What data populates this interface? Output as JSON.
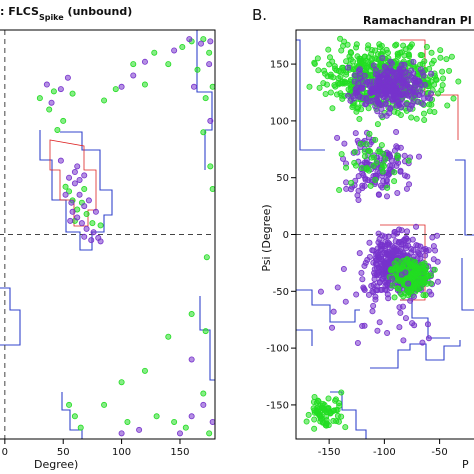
{
  "figure": {
    "panel_a": {
      "title_prefix": ": FLCS",
      "title_sub": "Spike",
      "title_suffix": " (unbound)"
    },
    "panel_b": {
      "letter": "B.",
      "title": "Ramachandran Pl"
    }
  },
  "chart_data": [
    {
      "type": "scatter",
      "panel": "A",
      "title": ": FLCS Spike (unbound)",
      "xlabel": "Degree)",
      "ylabel": "",
      "xlim": [
        -5,
        180
      ],
      "ylim": [
        -180,
        180
      ],
      "x_ticks": [
        "0",
        "50",
        "100",
        "150"
      ],
      "x_tick_values": [
        0,
        50,
        100,
        150
      ],
      "reference_lines": {
        "vertical_x": 0,
        "horizontal_y": 0,
        "style": "dashed"
      },
      "colors": {
        "favored_contour": "#3344cc",
        "allowed_contour": "#dd2222",
        "point_green": "#22dd22",
        "point_purple": "#7733cc"
      },
      "series": [
        {
          "name": "green",
          "points": [
            [
              62,
              22
            ],
            [
              58,
              30
            ],
            [
              66,
              28
            ],
            [
              70,
              18
            ],
            [
              55,
              38
            ],
            [
              60,
              12
            ],
            [
              75,
              10
            ],
            [
              52,
              42
            ],
            [
              82,
              8
            ],
            [
              68,
              40
            ],
            [
              45,
              92
            ],
            [
              38,
              110
            ],
            [
              50,
              100
            ],
            [
              58,
              124
            ],
            [
              42,
              126
            ],
            [
              30,
              120
            ],
            [
              85,
              118
            ],
            [
              95,
              128
            ],
            [
              120,
              132
            ],
            [
              140,
              150
            ],
            [
              152,
              165
            ],
            [
              160,
              170
            ],
            [
              170,
              172
            ],
            [
              175,
              160
            ],
            [
              165,
              145
            ],
            [
              178,
              130
            ],
            [
              172,
              120
            ],
            [
              110,
              150
            ],
            [
              128,
              160
            ],
            [
              160,
              -70
            ],
            [
              172,
              -85
            ],
            [
              120,
              -120
            ],
            [
              100,
              -130
            ],
            [
              85,
              -150
            ],
            [
              60,
              -160
            ],
            [
              55,
              -150
            ],
            [
              65,
              -170
            ],
            [
              130,
              -160
            ],
            [
              145,
              -165
            ],
            [
              155,
              -170
            ],
            [
              175,
              -175
            ],
            [
              105,
              -165
            ],
            [
              170,
              -140
            ],
            [
              140,
              -90
            ],
            [
              178,
              40
            ],
            [
              170,
              90
            ],
            [
              176,
              60
            ],
            [
              173,
              -20
            ]
          ]
        },
        {
          "name": "purple",
          "points": [
            [
              55,
              50
            ],
            [
              60,
              45
            ],
            [
              64,
              35
            ],
            [
              68,
              25
            ],
            [
              62,
              15
            ],
            [
              57,
              28
            ],
            [
              72,
              30
            ],
            [
              66,
              10
            ],
            [
              78,
              20
            ],
            [
              60,
              55
            ],
            [
              48,
              65
            ],
            [
              70,
              5
            ],
            [
              74,
              -5
            ],
            [
              76,
              2
            ],
            [
              80,
              -3
            ],
            [
              64,
              48
            ],
            [
              52,
              35
            ],
            [
              58,
              20
            ],
            [
              68,
              -2
            ],
            [
              82,
              -6
            ],
            [
              62,
              60
            ],
            [
              68,
              52
            ],
            [
              56,
              12
            ],
            [
              48,
              128
            ],
            [
              40,
              116
            ],
            [
              54,
              138
            ],
            [
              36,
              132
            ],
            [
              100,
              130
            ],
            [
              145,
              162
            ],
            [
              158,
              172
            ],
            [
              168,
              168
            ],
            [
              176,
              170
            ],
            [
              162,
              130
            ],
            [
              175,
              150
            ],
            [
              110,
              140
            ],
            [
              120,
              152
            ],
            [
              170,
              -150
            ],
            [
              150,
              -175
            ],
            [
              160,
              -160
            ],
            [
              100,
              -175
            ],
            [
              115,
              -172
            ],
            [
              178,
              -165
            ],
            [
              160,
              -110
            ],
            [
              176,
              100
            ]
          ]
        }
      ]
    },
    {
      "type": "scatter",
      "panel": "B",
      "title": "Ramachandran Pl",
      "xlabel": "P",
      "ylabel": "Psi (Degree)",
      "xlim": [
        -180,
        -8
      ],
      "ylim": [
        -180,
        180
      ],
      "x_ticks": [
        "-150",
        "-100",
        "-50"
      ],
      "x_tick_values": [
        -150,
        -100,
        -50
      ],
      "y_ticks": [
        "150",
        "100",
        "50",
        "0",
        "-50",
        "-100",
        "-150"
      ],
      "y_tick_values": [
        150,
        100,
        50,
        0,
        -50,
        -100,
        -150
      ],
      "reference_lines": {
        "horizontal_y": 0,
        "style": "dashed"
      },
      "colors": {
        "favored_contour": "#3344cc",
        "allowed_contour": "#dd2222",
        "point_green": "#22dd22",
        "point_purple": "#7733cc"
      },
      "clusters": [
        {
          "name": "beta-sheet",
          "x_range": [
            -178,
            -25
          ],
          "y_range": [
            95,
            178
          ],
          "color": "green",
          "count": 550
        },
        {
          "name": "beta-sheet-core",
          "x_range": [
            -140,
            -50
          ],
          "y_range": [
            100,
            160
          ],
          "color": "purple",
          "count": 280
        },
        {
          "name": "bridge",
          "x_range": [
            -150,
            -60
          ],
          "y_range": [
            20,
            100
          ],
          "color": "purple",
          "count": 130
        },
        {
          "name": "bridge-green",
          "x_range": [
            -150,
            -70
          ],
          "y_range": [
            30,
            95
          ],
          "color": "green",
          "count": 40
        },
        {
          "name": "alpha-helix",
          "x_range": [
            -130,
            -45
          ],
          "y_range": [
            -65,
            12
          ],
          "color": "purple",
          "count": 380
        },
        {
          "name": "alpha-helix-core",
          "x_range": [
            -100,
            -50
          ],
          "y_range": [
            -60,
            -15
          ],
          "color": "green",
          "count": 170
        },
        {
          "name": "lower-left",
          "x_range": [
            -178,
            -130
          ],
          "y_range": [
            -178,
            -135
          ],
          "color": "green",
          "count": 70
        },
        {
          "name": "scattered",
          "x_range": [
            -178,
            -20
          ],
          "y_range": [
            -130,
            0
          ],
          "color": "purple",
          "count": 40
        }
      ]
    }
  ]
}
